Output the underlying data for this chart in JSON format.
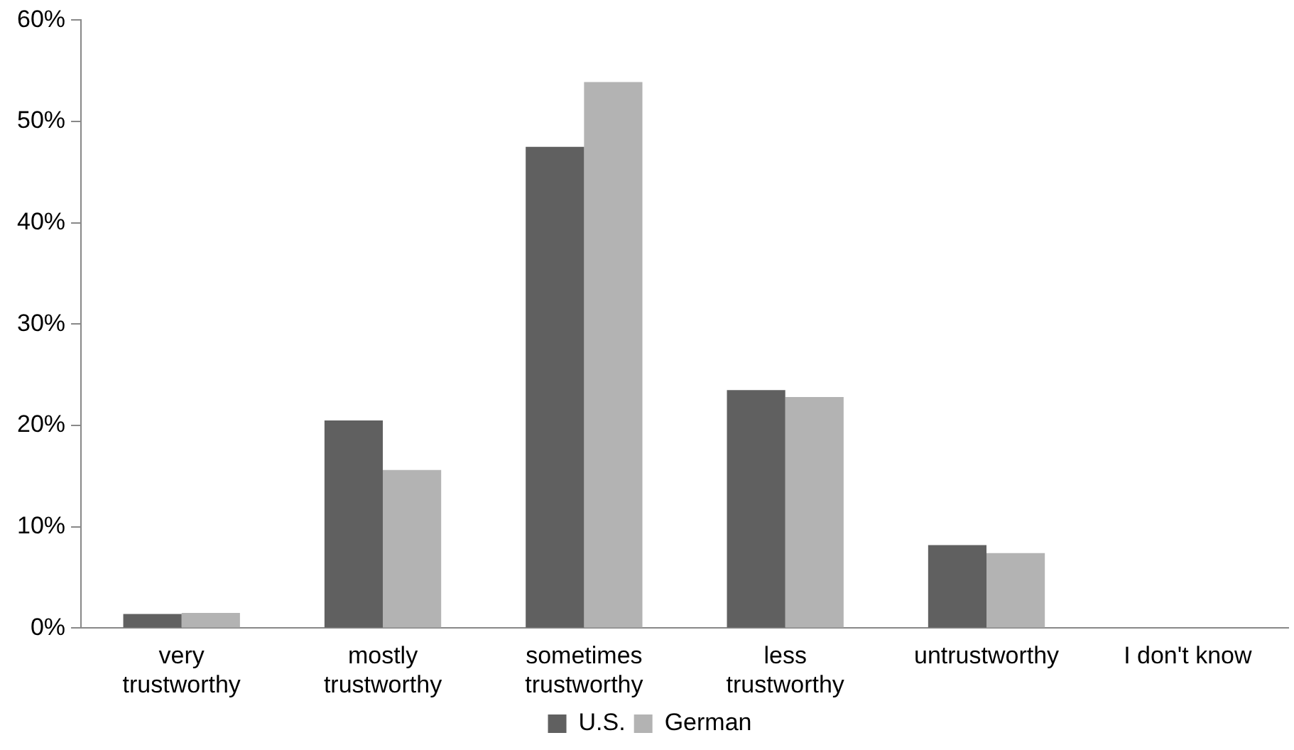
{
  "chart_data": {
    "type": "bar",
    "categories": [
      "very\ntrustworthy",
      "mostly\ntrustworthy",
      "sometimes\ntrustworthy",
      "less\ntrustworthy",
      "untrustworthy",
      "I don't know"
    ],
    "series": [
      {
        "name": "U.S.",
        "color": "#606060",
        "values": [
          1.4,
          20.5,
          47.5,
          23.5,
          8.2,
          0
        ]
      },
      {
        "name": "German",
        "color": "#b3b3b3",
        "values": [
          1.5,
          15.6,
          53.9,
          22.8,
          7.4,
          0
        ]
      }
    ],
    "ylim": [
      0,
      60
    ],
    "yticks": [
      {
        "value": 0,
        "label": "0%"
      },
      {
        "value": 10,
        "label": "10%"
      },
      {
        "value": 20,
        "label": "20%"
      },
      {
        "value": 30,
        "label": "30%"
      },
      {
        "value": 40,
        "label": "40%"
      },
      {
        "value": 50,
        "label": "50%"
      },
      {
        "value": 60,
        "label": "60%"
      }
    ],
    "grid": false,
    "legend": "bottom"
  }
}
